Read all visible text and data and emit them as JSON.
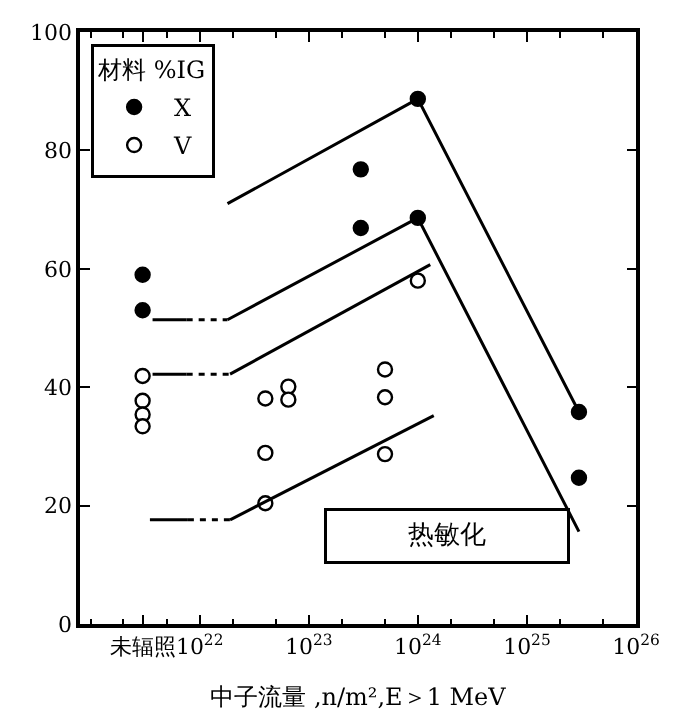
{
  "chart_data": {
    "type": "scatter",
    "xlabel": "中子流量 ,n/m²,E＞1 MeV",
    "log": "x",
    "xlim": [
      8e+20,
      1e+26
    ],
    "xticks": [
      {
        "value": 3e+21,
        "label": "未辐照"
      },
      {
        "value": 1e+22,
        "label": "10$^{22}$"
      },
      {
        "value": 1e+23,
        "label": "10$^{23}$"
      },
      {
        "value": 1e+24,
        "label": "10$^{24}$"
      },
      {
        "value": 1e+25,
        "label": "10$^{25}$"
      },
      {
        "value": 1e+26,
        "label": "10$^{26}$"
      }
    ],
    "ylim": [
      0,
      100
    ],
    "yticks": [
      0,
      20,
      40,
      60,
      80,
      100
    ],
    "legend": "top left",
    "legend_title": "材料 %IG",
    "marker": "circle",
    "annotations": [
      "热敏化"
    ],
    "series": [
      {
        "name": "X",
        "color": "#000000",
        "x": [
          3e+21,
          3e+21,
          3e+23,
          3e+23,
          1e+24,
          1e+24,
          3e+25,
          3e+25
        ],
        "values": [
          59,
          53,
          76.8,
          66.9,
          88.7,
          68.6,
          35.8,
          24.7
        ]
      },
      {
        "name": "V",
        "color": "#ffffff",
        "x": [
          3e+21,
          3e+21,
          3e+21,
          3e+21,
          4e+22,
          4e+22,
          4e+22,
          6.5e+22,
          6.5e+22,
          5e+23,
          5e+23,
          5e+23,
          1e+24
        ],
        "values": [
          41.9,
          37.7,
          35.4,
          33.4,
          38.1,
          28.9,
          20.4,
          40.1,
          37.9,
          43,
          38.3,
          28.7,
          58
        ]
      },
      {
        "type": "line",
        "marker": "none",
        "line_style": "solid",
        "color": "#000000",
        "x": [
          1.8e+22,
          1e+24,
          3e+25
        ],
        "values": [
          71,
          88.7,
          35.8
        ]
      },
      {
        "type": "line",
        "marker": "none",
        "line_style": "solid",
        "color": "#000000",
        "x": [
          3.7e+21,
          7.6e+21
        ],
        "values": [
          51.4,
          51.4
        ]
      },
      {
        "type": "line",
        "marker": "none",
        "line_style": "dotted",
        "color": "#000000",
        "x": [
          7.6e+21,
          1.8e+22
        ],
        "values": [
          51.4,
          51.4
        ]
      },
      {
        "type": "line",
        "marker": "none",
        "line_style": "solid",
        "color": "#000000",
        "x": [
          1.8e+22,
          1e+24,
          3e+25
        ],
        "values": [
          51.4,
          68.6,
          15.6
        ]
      },
      {
        "type": "line",
        "marker": "none",
        "line_style": "solid",
        "color": "#000000",
        "x": [
          3.7e+21,
          7.6e+21
        ],
        "values": [
          42.2,
          42.2
        ]
      },
      {
        "type": "line",
        "marker": "none",
        "line_style": "dotted",
        "color": "#000000",
        "x": [
          7.6e+21,
          1.9e+22
        ],
        "values": [
          42.2,
          42.2
        ]
      },
      {
        "type": "line",
        "marker": "none",
        "line_style": "solid",
        "color": "#000000",
        "x": [
          1.9e+22,
          1.3e+24
        ],
        "values": [
          42.2,
          60.7
        ]
      },
      {
        "type": "line",
        "marker": "none",
        "line_style": "solid",
        "color": "#000000",
        "x": [
          3.5e+21,
          7.8e+21
        ],
        "values": [
          17.6,
          17.6
        ]
      },
      {
        "type": "line",
        "marker": "none",
        "line_style": "dotted",
        "color": "#000000",
        "x": [
          7.8e+21,
          1.9e+22
        ],
        "values": [
          17.6,
          17.6
        ]
      },
      {
        "type": "line",
        "marker": "none",
        "line_style": "solid",
        "color": "#000000",
        "x": [
          1.9e+22,
          1.4e+24
        ],
        "values": [
          17.6,
          35.2
        ]
      }
    ]
  }
}
